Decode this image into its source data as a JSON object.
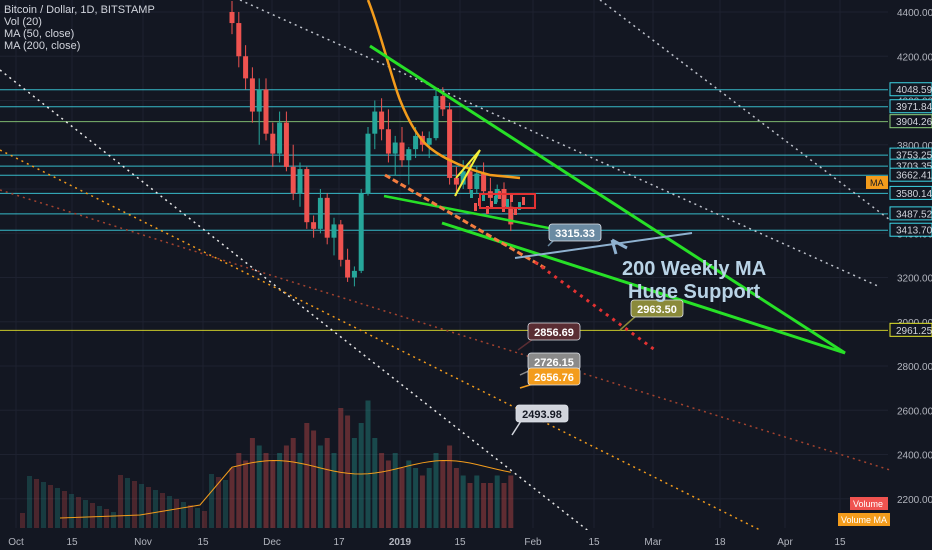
{
  "legend": {
    "symbol": "Bitcoin / Dollar, 1D, BITSTAMP",
    "vol": "Vol (20)",
    "ma50": "MA (50, close)",
    "ma200": "MA (200, close)"
  },
  "annotation": {
    "line1": "200 Weekly MA",
    "line2": "Huge Support"
  },
  "colors": {
    "background": "#131722",
    "up": "#26a69a",
    "down": "#ef5350",
    "ma50": "#f39c1c",
    "trend_green": "#27e027",
    "hline_cyan": "#3dd6e6",
    "hline_yellow": "#e6e62b"
  },
  "chart_data": {
    "type": "candlestick",
    "xaxis": {
      "ticks": [
        "Oct",
        "15",
        "Nov",
        "15",
        "Dec",
        "17",
        "2019",
        "15",
        "Feb",
        "15",
        "Mar",
        "18",
        "Apr",
        "15"
      ]
    },
    "yaxis": {
      "ticks": [
        "4400.00",
        "4200.00",
        "4000.00",
        "3800.00",
        "3600.00",
        "3400.00",
        "3200.00",
        "3000.00",
        "2800.00",
        "2600.00",
        "2400.00",
        "2200.00"
      ],
      "ylim": [
        2100,
        4450
      ]
    },
    "horizontal_levels": [
      {
        "value": 4048.59,
        "label": "4048.59",
        "color": "#3dd6e6"
      },
      {
        "value": 3971.84,
        "label": "3971.84",
        "color": "#3dd6e6"
      },
      {
        "value": 3904.26,
        "label": "3904.26",
        "color": "#8fd27b"
      },
      {
        "value": 3753.25,
        "label": "3753.25",
        "color": "#3dd6e6"
      },
      {
        "value": 3703.35,
        "label": "3703.35",
        "color": "#3dd6e6"
      },
      {
        "value": 3662.41,
        "label": "3662.41",
        "color": "#3dd6e6"
      },
      {
        "value": 3580.14,
        "label": "3580.14",
        "color": "#3dd6e6"
      },
      {
        "value": 3487.52,
        "label": "3487.52",
        "color": "#3dd6e6"
      },
      {
        "value": 3413.7,
        "label": "3413.70",
        "color": "#3dd6e6"
      },
      {
        "value": 2961.25,
        "label": "2961.25",
        "color": "#e6e62b"
      }
    ],
    "price_badges": [
      {
        "label": "MA",
        "value": 3640,
        "color": "#f39c1c"
      }
    ],
    "callouts": [
      {
        "label": "3315.33",
        "fill": "#6a8aa2",
        "value": 3315.33
      },
      {
        "label": "2963.50",
        "fill": "#8a8a3a",
        "value": 2963.5
      },
      {
        "label": "2856.69",
        "fill": "#5a2d33",
        "value": 2856.69
      },
      {
        "label": "2726.15",
        "fill": "#8a8a8a",
        "value": 2726.15
      },
      {
        "label": "2656.76",
        "fill": "#f39c1c",
        "value": 2656.76
      },
      {
        "label": "2493.98",
        "fill": "#d1d4dc",
        "value": 2493.98
      }
    ],
    "badges_bottom": [
      {
        "label": "Volume",
        "color": "#ef5350"
      },
      {
        "label": "Volume MA",
        "color": "#f39c1c"
      }
    ],
    "candles": [
      [
        4400,
        4450,
        4300,
        4350
      ],
      [
        4350,
        4400,
        4150,
        4200
      ],
      [
        4200,
        4250,
        4050,
        4100
      ],
      [
        4100,
        4150,
        3900,
        3950
      ],
      [
        3950,
        4100,
        3800,
        4050
      ],
      [
        4050,
        4100,
        3820,
        3850
      ],
      [
        3850,
        3900,
        3700,
        3760
      ],
      [
        3760,
        3950,
        3720,
        3900
      ],
      [
        3900,
        3950,
        3680,
        3700
      ],
      [
        3700,
        3800,
        3550,
        3580
      ],
      [
        3580,
        3720,
        3520,
        3690
      ],
      [
        3690,
        3700,
        3420,
        3450
      ],
      [
        3450,
        3480,
        3380,
        3420
      ],
      [
        3420,
        3600,
        3400,
        3560
      ],
      [
        3560,
        3580,
        3350,
        3380
      ],
      [
        3380,
        3470,
        3300,
        3440
      ],
      [
        3440,
        3460,
        3250,
        3280
      ],
      [
        3280,
        3330,
        3180,
        3200
      ],
      [
        3200,
        3250,
        3160,
        3230
      ],
      [
        3230,
        3600,
        3220,
        3580
      ],
      [
        3580,
        3880,
        3570,
        3850
      ],
      [
        3850,
        4000,
        3780,
        3950
      ],
      [
        3950,
        4010,
        3820,
        3870
      ],
      [
        3870,
        3960,
        3720,
        3760
      ],
      [
        3760,
        3840,
        3660,
        3810
      ],
      [
        3810,
        3880,
        3700,
        3730
      ],
      [
        3730,
        3790,
        3620,
        3780
      ],
      [
        3780,
        3880,
        3740,
        3840
      ],
      [
        3840,
        3860,
        3770,
        3800
      ],
      [
        3800,
        3860,
        3740,
        3830
      ],
      [
        3830,
        4050,
        3820,
        4020
      ],
      [
        4020,
        4060,
        3930,
        3960
      ],
      [
        3960,
        3990,
        3620,
        3650
      ],
      [
        3650,
        3700,
        3570,
        3620
      ],
      [
        3620,
        3730,
        3600,
        3680
      ],
      [
        3680,
        3720,
        3580,
        3600
      ],
      [
        3600,
        3700,
        3580,
        3670
      ],
      [
        3670,
        3720,
        3560,
        3590
      ],
      [
        3590,
        3650,
        3520,
        3560
      ],
      [
        3560,
        3620,
        3540,
        3600
      ],
      [
        3600,
        3630,
        3500,
        3520
      ],
      [
        3520,
        3550,
        3410,
        3440
      ]
    ],
    "volume": [
      0.4,
      0.5,
      0.45,
      0.6,
      0.55,
      0.5,
      0.45,
      0.5,
      0.55,
      0.6,
      0.5,
      0.7,
      0.65,
      0.55,
      0.6,
      0.5,
      0.8,
      0.75,
      0.6,
      0.7,
      0.85,
      0.6,
      0.5,
      0.45,
      0.5,
      0.4,
      0.45,
      0.4,
      0.35,
      0.4,
      0.5,
      0.45,
      0.55,
      0.4,
      0.35,
      0.3,
      0.35,
      0.3,
      0.3,
      0.35,
      0.3,
      0.35
    ]
  }
}
